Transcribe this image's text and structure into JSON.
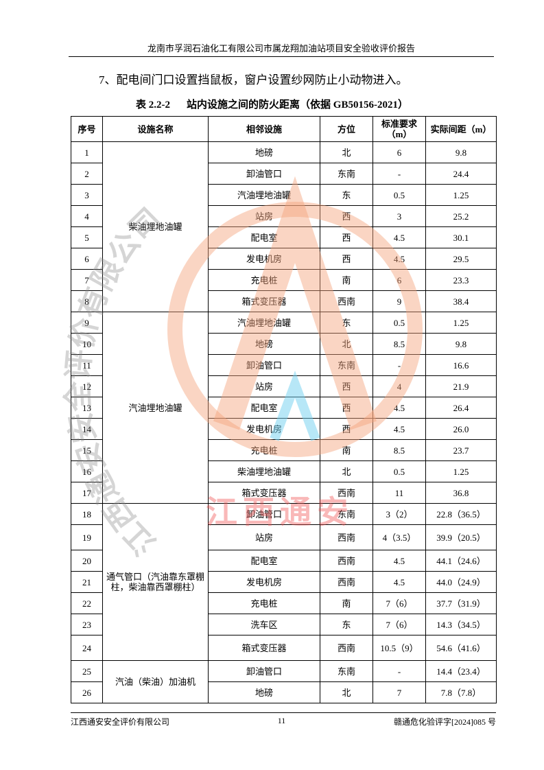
{
  "header": {
    "title": "龙南市孚润石油化工有限公司市属龙翔加油站项目安全验收评价报告"
  },
  "paragraph": "7、配电间门口设置挡鼠板，窗户设置纱网防止小动物进入。",
  "table": {
    "caption_number": "表 2.2-2",
    "caption_title": "站内设施之间的防火距离（依据 GB50156-2021）",
    "columns": [
      "序号",
      "设施名称",
      "相邻设施",
      "方位",
      "标准要求（m）",
      "实际间距（m）"
    ],
    "groups": [
      {
        "name": "柴油埋地油罐",
        "rows": [
          [
            "1",
            "地磅",
            "北",
            "6",
            "9.8"
          ],
          [
            "2",
            "卸油管口",
            "东南",
            "-",
            "24.4"
          ],
          [
            "3",
            "汽油埋地油罐",
            "东",
            "0.5",
            "1.25"
          ],
          [
            "4",
            "站房",
            "西",
            "3",
            "25.2"
          ],
          [
            "5",
            "配电室",
            "西",
            "4.5",
            "30.1"
          ],
          [
            "6",
            "发电机房",
            "西",
            "4.5",
            "29.5"
          ],
          [
            "7",
            "充电桩",
            "南",
            "6",
            "23.3"
          ],
          [
            "8",
            "箱式变压器",
            "西南",
            "9",
            "38.4"
          ]
        ]
      },
      {
        "name": "汽油埋地油罐",
        "rows": [
          [
            "9",
            "汽油埋地油罐",
            "东",
            "0.5",
            "1.25"
          ],
          [
            "10",
            "地磅",
            "北",
            "8.5",
            "9.8"
          ],
          [
            "11",
            "卸油管口",
            "东南",
            "-",
            "16.6"
          ],
          [
            "12",
            "站房",
            "西",
            "4",
            "21.9"
          ],
          [
            "13",
            "配电室",
            "西",
            "4.5",
            "26.4"
          ],
          [
            "14",
            "发电机房",
            "西",
            "4.5",
            "26.0"
          ],
          [
            "15",
            "充电桩",
            "南",
            "8.5",
            "23.7"
          ],
          [
            "16",
            "柴油埋地油罐",
            "北",
            "0.5",
            "1.25"
          ],
          [
            "17",
            "箱式变压器",
            "西南",
            "11",
            "36.8"
          ]
        ]
      },
      {
        "name": "通气管口（汽油靠东罩棚柱，柴油靠西罩棚柱）",
        "rows": [
          [
            "18",
            "卸油管口",
            "东南",
            "3（2）",
            "22.8（36.5）"
          ],
          [
            "19",
            "站房",
            "西南",
            "4（3.5）",
            "39.9（20.5）"
          ],
          [
            "20",
            "配电室",
            "西南",
            "4.5",
            "44.1（24.6）"
          ],
          [
            "21",
            "发电机房",
            "西南",
            "4.5",
            "44.0（24.9）"
          ],
          [
            "22",
            "充电桩",
            "南",
            "7（6）",
            "37.7（31.9）"
          ],
          [
            "23",
            "洗车区",
            "东",
            "7（6）",
            "14.3（34.5）"
          ],
          [
            "24",
            "箱式变压器",
            "西南",
            "10.5（9）",
            "54.6（41.6）"
          ]
        ]
      },
      {
        "name": "汽油（柴油）加油机",
        "rows": [
          [
            "25",
            "卸油管口",
            "东南",
            "-",
            "14.4（23.4）"
          ],
          [
            "26",
            "地磅",
            "北",
            "7",
            "7.8（7.8）"
          ]
        ]
      }
    ]
  },
  "watermark": {
    "arc": "江西通安安全评价有限公司",
    "text": "江西通安"
  },
  "footer": {
    "company": "江西通安安全评价有限公司",
    "page": "11",
    "code": "赣通危化验评字[2024]085 号"
  }
}
